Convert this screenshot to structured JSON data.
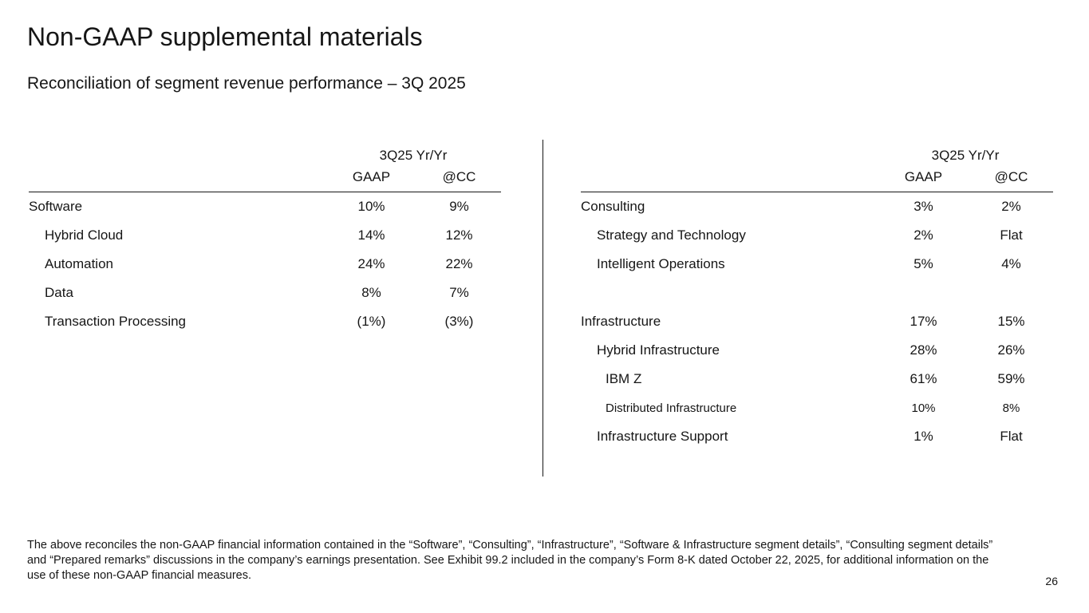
{
  "slide": {
    "title": "Non-GAAP supplemental materials",
    "subtitle": "Reconciliation of segment revenue performance – 3Q 2025",
    "page_number": "26",
    "footnote": "The above reconciles the non-GAAP financial information contained in the “Software”, “Consulting”, “Infrastructure”, “Software & Infrastructure segment details”, “Consulting segment details” and “Prepared remarks” discussions in the company’s earnings presentation. See Exhibit 99.2 included in the company’s Form 8-K dated October 22, 2025, for additional information on the use of these non-GAAP financial measures."
  },
  "left_table": {
    "period_header": "3Q25 Yr/Yr",
    "col_gaap": "GAAP",
    "col_cc": "@CC",
    "rows": [
      {
        "label": "Software",
        "gaap": "10%",
        "cc": "9%"
      },
      {
        "label": "Hybrid Cloud",
        "gaap": "14%",
        "cc": "12%"
      },
      {
        "label": "Automation",
        "gaap": "24%",
        "cc": "22%"
      },
      {
        "label": "Data",
        "gaap": "8%",
        "cc": "7%"
      },
      {
        "label": "Transaction Processing",
        "gaap": "(1%)",
        "cc": "(3%)"
      }
    ]
  },
  "right_table": {
    "period_header": "3Q25 Yr/Yr",
    "col_gaap": "GAAP",
    "col_cc": "@CC",
    "rows": [
      {
        "label": "Consulting",
        "gaap": "3%",
        "cc": "2%"
      },
      {
        "label": "Strategy and Technology",
        "gaap": "2%",
        "cc": "Flat"
      },
      {
        "label": "Intelligent Operations",
        "gaap": "5%",
        "cc": "4%"
      },
      {
        "label": "Infrastructure",
        "gaap": "17%",
        "cc": "15%"
      },
      {
        "label": "Hybrid Infrastructure",
        "gaap": "28%",
        "cc": "26%"
      },
      {
        "label": "IBM Z",
        "gaap": "61%",
        "cc": "59%"
      },
      {
        "label": "Distributed Infrastructure",
        "gaap": "10%",
        "cc": "8%"
      },
      {
        "label": "Infrastructure Support",
        "gaap": "1%",
        "cc": "Flat"
      }
    ]
  }
}
